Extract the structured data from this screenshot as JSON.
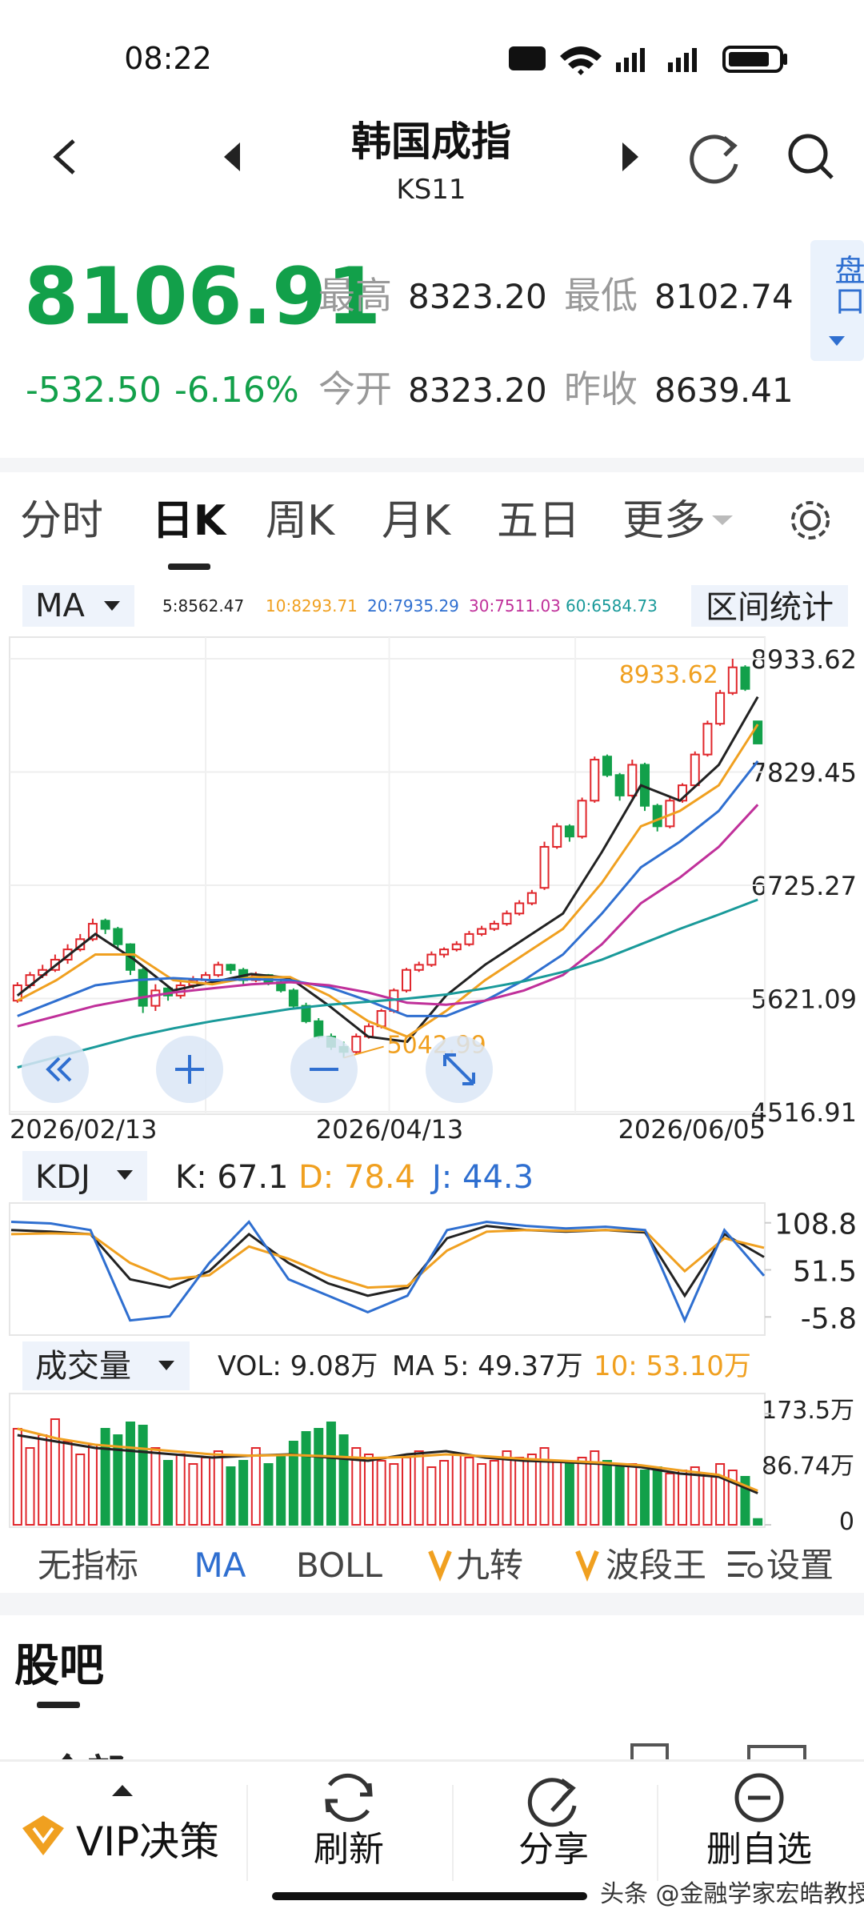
{
  "status": {
    "time": "08:22"
  },
  "header": {
    "title": "韩国成指",
    "code": "KS11"
  },
  "quote": {
    "price": "8106.91",
    "change": "-532.50",
    "change_pct": "-6.16%",
    "fields": [
      {
        "label": "最高",
        "value": "8323.20"
      },
      {
        "label": "最低",
        "value": "8102.74"
      },
      {
        "label": "今开",
        "value": "8323.20"
      },
      {
        "label": "昨收",
        "value": "8639.41"
      }
    ],
    "side_button": "盘口"
  },
  "tabs": {
    "items": [
      "分时",
      "日K",
      "周K",
      "月K",
      "五日",
      "更多"
    ],
    "active": 1
  },
  "chart_data": [
    {
      "type": "candlestick",
      "indicator": "MA",
      "button": "区间统计",
      "up_color": "#e0262b",
      "down_color": "#12a04a",
      "grid": true,
      "ylim": [
        4516.91,
        8933.62
      ],
      "yticks": [
        8933.62,
        7829.45,
        6725.27,
        5621.09,
        4516.91
      ],
      "x_labels": [
        "2026/02/13",
        "2026/04/13",
        "2026/06/05"
      ],
      "annotations": {
        "high": "8933.62",
        "low": "5042.99"
      },
      "ohlc": [
        [
          5600,
          5780,
          5580,
          5750
        ],
        [
          5750,
          5880,
          5720,
          5850
        ],
        [
          5850,
          5950,
          5820,
          5900
        ],
        [
          5900,
          6050,
          5880,
          6000
        ],
        [
          6000,
          6150,
          5960,
          6100
        ],
        [
          6100,
          6250,
          6080,
          6200
        ],
        [
          6200,
          6400,
          6180,
          6350
        ],
        [
          6380,
          6400,
          6250,
          6300
        ],
        [
          6300,
          6320,
          6100,
          6150
        ],
        [
          6150,
          6160,
          5850,
          5900
        ],
        [
          5900,
          5920,
          5480,
          5550
        ],
        [
          5550,
          5760,
          5500,
          5700
        ],
        [
          5720,
          5740,
          5600,
          5650
        ],
        [
          5650,
          5800,
          5620,
          5750
        ],
        [
          5750,
          5840,
          5720,
          5800
        ],
        [
          5800,
          5880,
          5780,
          5850
        ],
        [
          5850,
          5980,
          5830,
          5950
        ],
        [
          5950,
          5960,
          5860,
          5900
        ],
        [
          5900,
          5920,
          5760,
          5800
        ],
        [
          5800,
          5880,
          5780,
          5850
        ],
        [
          5850,
          5860,
          5750,
          5780
        ],
        [
          5780,
          5800,
          5680,
          5700
        ],
        [
          5700,
          5720,
          5520,
          5550
        ],
        [
          5550,
          5580,
          5380,
          5400
        ],
        [
          5400,
          5430,
          5230,
          5250
        ],
        [
          5250,
          5280,
          5120,
          5150
        ],
        [
          5150,
          5200,
          5042.99,
          5100
        ],
        [
          5100,
          5280,
          5080,
          5250
        ],
        [
          5250,
          5380,
          5230,
          5350
        ],
        [
          5350,
          5520,
          5330,
          5500
        ],
        [
          5500,
          5720,
          5480,
          5700
        ],
        [
          5700,
          5920,
          5680,
          5900
        ],
        [
          5900,
          5980,
          5880,
          5950
        ],
        [
          5950,
          6080,
          5930,
          6050
        ],
        [
          6050,
          6120,
          6020,
          6100
        ],
        [
          6100,
          6180,
          6080,
          6150
        ],
        [
          6150,
          6280,
          6130,
          6250
        ],
        [
          6250,
          6330,
          6230,
          6300
        ],
        [
          6300,
          6380,
          6280,
          6350
        ],
        [
          6350,
          6480,
          6330,
          6450
        ],
        [
          6450,
          6580,
          6430,
          6550
        ],
        [
          6550,
          6680,
          6530,
          6650
        ],
        [
          6700,
          7150,
          6680,
          7100
        ],
        [
          7100,
          7330,
          7080,
          7300
        ],
        [
          7300,
          7320,
          7150,
          7200
        ],
        [
          7200,
          7580,
          7180,
          7550
        ],
        [
          7550,
          7980,
          7530,
          7950
        ],
        [
          7980,
          8000,
          7780,
          7800
        ],
        [
          7800,
          7820,
          7550,
          7600
        ],
        [
          7600,
          7950,
          7580,
          7900
        ],
        [
          7900,
          7920,
          7450,
          7500
        ],
        [
          7500,
          7520,
          7250,
          7300
        ],
        [
          7300,
          7580,
          7280,
          7550
        ],
        [
          7550,
          7720,
          7530,
          7700
        ],
        [
          7700,
          8030,
          7680,
          8000
        ],
        [
          8000,
          8330,
          7980,
          8300
        ],
        [
          8300,
          8630,
          8280,
          8600
        ],
        [
          8600,
          8933.62,
          8580,
          8850
        ],
        [
          8850,
          8870,
          8620,
          8639.41
        ],
        [
          8323.2,
          8323.2,
          8102.74,
          8106.91
        ]
      ],
      "series": [
        {
          "name": "5:8562.47",
          "color": "#222222",
          "values": [
            5650,
            5950,
            6250,
            6000,
            5700,
            5780,
            5860,
            5820,
            5550,
            5250,
            5200,
            5650,
            5950,
            6200,
            6450,
            7050,
            7700,
            7550,
            7900,
            8562.47
          ]
        },
        {
          "name": "10:8293.71",
          "color": "#f0a020",
          "values": [
            5600,
            5800,
            6050,
            6050,
            5800,
            5760,
            5830,
            5830,
            5650,
            5400,
            5250,
            5500,
            5800,
            6050,
            6300,
            6750,
            7300,
            7450,
            7700,
            8293.71
          ]
        },
        {
          "name": "20:7935.29",
          "color": "#2f6fd0",
          "values": [
            5450,
            5600,
            5750,
            5800,
            5820,
            5800,
            5810,
            5800,
            5730,
            5600,
            5450,
            5450,
            5600,
            5800,
            6050,
            6450,
            6900,
            7150,
            7450,
            7935.29
          ]
        },
        {
          "name": "30:7511.03",
          "color": "#c0309a",
          "values": [
            5350,
            5450,
            5550,
            5620,
            5680,
            5720,
            5760,
            5780,
            5750,
            5680,
            5580,
            5560,
            5600,
            5700,
            5850,
            6150,
            6550,
            6800,
            7100,
            7511.03
          ]
        },
        {
          "name": "60:6584.73",
          "color": "#1a9a9a",
          "values": [
            4950,
            5050,
            5150,
            5250,
            5330,
            5400,
            5460,
            5520,
            5560,
            5590,
            5620,
            5660,
            5720,
            5790,
            5880,
            6000,
            6150,
            6300,
            6440,
            6584.73
          ]
        }
      ]
    },
    {
      "type": "line",
      "title": "KDJ",
      "ylim": [
        -25,
        129
      ],
      "yticks": [
        108.8,
        51.5,
        -5.8
      ],
      "series": [
        {
          "name": "K: 67.1",
          "color": "#222222",
          "values": [
            100,
            98,
            95,
            40,
            30,
            50,
            95,
            60,
            35,
            20,
            30,
            90,
            105,
            100,
            98,
            100,
            97,
            20,
            95,
            67.1
          ]
        },
        {
          "name": "D: 78.4",
          "color": "#f0a020",
          "values": [
            95,
            96,
            95,
            60,
            40,
            45,
            80,
            65,
            45,
            30,
            32,
            75,
            98,
            100,
            99,
            100,
            99,
            50,
            90,
            78.4
          ]
        },
        {
          "name": "J: 44.3",
          "color": "#2f6fd0",
          "values": [
            110,
            108,
            100,
            -10,
            -5,
            60,
            110,
            40,
            20,
            0,
            20,
            100,
            110,
            105,
            102,
            104,
            100,
            -10,
            100,
            44.3
          ]
        }
      ]
    },
    {
      "type": "volume",
      "title": "成交量",
      "volume_label": "VOL: 9.08万",
      "ylim": [
        0,
        200
      ],
      "yticks": [
        {
          "value": 173.5,
          "label": "173.5万"
        },
        {
          "value": 86.74,
          "label": "86.74万"
        },
        0
      ],
      "values": [
        150,
        120,
        140,
        165,
        130,
        110,
        125,
        150,
        140,
        160,
        155,
        120,
        100,
        110,
        95,
        105,
        115,
        90,
        100,
        120,
        95,
        110,
        130,
        145,
        150,
        160,
        140,
        120,
        110,
        100,
        95,
        105,
        115,
        90,
        100,
        110,
        105,
        95,
        100,
        115,
        105,
        110,
        120,
        100,
        95,
        105,
        115,
        100,
        90,
        95,
        85,
        90,
        80,
        85,
        90,
        80,
        95,
        85,
        75,
        9.08
      ],
      "series": [
        {
          "name": "MA 5: 49.37万",
          "color": "#222222",
          "values": [
            140,
            130,
            120,
            115,
            110,
            105,
            108,
            110,
            105,
            100,
            110,
            115,
            105,
            100,
            98,
            95,
            90,
            80,
            75,
            49.37
          ]
        },
        {
          "name": "10: 53.10万",
          "color": "#f0a020",
          "values": [
            150,
            135,
            125,
            120,
            115,
            110,
            108,
            109,
            107,
            104,
            106,
            110,
            107,
            103,
            100,
            97,
            93,
            85,
            78,
            53.1
          ]
        }
      ]
    }
  ],
  "indicators": {
    "items": [
      "无指标",
      "MA",
      "BOLL",
      "九转",
      "波段王",
      "设置"
    ],
    "active": 1
  },
  "forum": {
    "title": "股吧",
    "tab": "全部"
  },
  "bottom_bar": {
    "items": [
      "VIP决策",
      "刷新",
      "分享",
      "删自选"
    ]
  },
  "watermark": "头条 @金融学家宏皓教授"
}
